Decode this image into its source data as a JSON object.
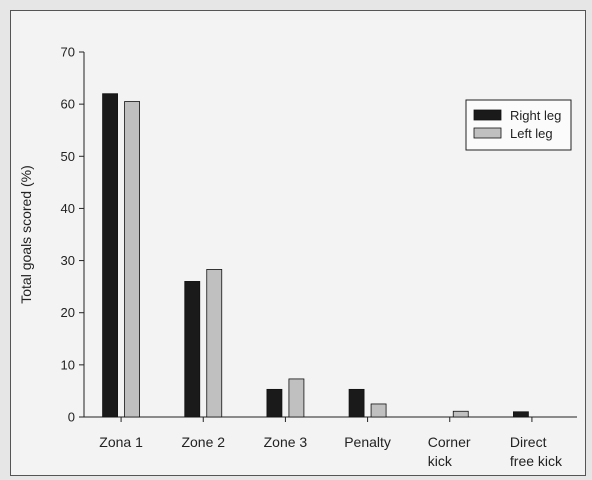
{
  "chart_data": {
    "type": "bar",
    "ylabel": "Total goals scored (%)",
    "xlabel": "",
    "ylim": [
      0,
      70
    ],
    "yticks": [
      "0",
      "10",
      "20",
      "30",
      "40",
      "50",
      "60",
      "70"
    ],
    "categories": [
      [
        "Zona 1"
      ],
      [
        "Zone 2"
      ],
      [
        "Zone 3"
      ],
      [
        "Penalty"
      ],
      [
        "Corner",
        "kick"
      ],
      [
        "Direct",
        "free kick"
      ]
    ],
    "series": [
      {
        "name": "Right leg",
        "color": "#1a1a1a",
        "values": [
          62,
          26,
          5.3,
          5.3,
          0,
          1
        ]
      },
      {
        "name": "Left leg",
        "color": "#c0c0c0",
        "values": [
          60.5,
          28.3,
          7.3,
          2.5,
          1.1,
          0
        ]
      }
    ],
    "legend_position": "top-right",
    "grid": false
  }
}
